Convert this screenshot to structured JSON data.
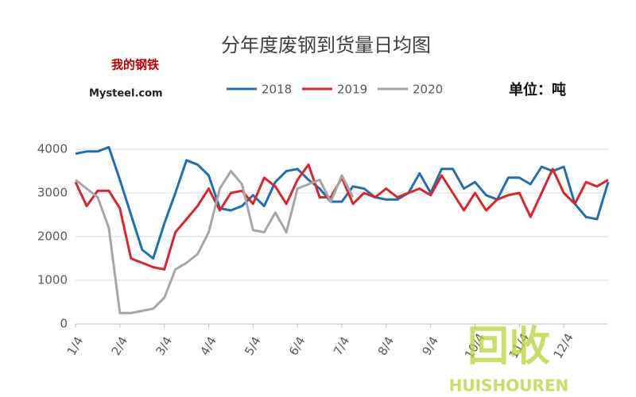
{
  "chart_data": {
    "type": "line",
    "title": "分年度废钢到货量日均图",
    "unit": "单位：吨",
    "logo": {
      "text": "我的钢铁",
      "site": "Mysteel.com"
    },
    "watermark": {
      "text": "回收",
      "site": "HUISHOUREN"
    },
    "categories": [
      "1/4",
      null,
      null,
      null,
      "2/4",
      null,
      null,
      null,
      "3/4",
      null,
      null,
      null,
      "4/4",
      null,
      null,
      null,
      "5/4",
      null,
      null,
      null,
      "6/4",
      null,
      null,
      null,
      "7/4",
      null,
      null,
      null,
      "8/4",
      null,
      null,
      null,
      "9/4",
      null,
      null,
      null,
      "10/4",
      null,
      null,
      null,
      "11/4",
      null,
      null,
      null,
      "12/4",
      null,
      null,
      null,
      null
    ],
    "series": [
      {
        "name": "2018",
        "color": "#1f6fb2",
        "values": [
          3900,
          3950,
          3950,
          4050,
          3300,
          2500,
          1700,
          1500,
          2300,
          3000,
          3750,
          3650,
          3400,
          2650,
          2600,
          2700,
          2950,
          2700,
          3250,
          3500,
          3550,
          3300,
          3100,
          2800,
          2800,
          3150,
          3100,
          2900,
          2850,
          2850,
          3000,
          3450,
          3000,
          3550,
          3550,
          3100,
          3250,
          2950,
          2850,
          3350,
          3350,
          3200,
          3600,
          3500,
          3600,
          2750,
          2450,
          2400,
          3250
        ]
      },
      {
        "name": "2019",
        "color": "#d9262b",
        "values": [
          3250,
          2700,
          3050,
          3050,
          2650,
          1500,
          1400,
          1300,
          1250,
          2100,
          2400,
          2700,
          3100,
          2600,
          3000,
          3050,
          2750,
          3350,
          3150,
          2750,
          3300,
          3650,
          2900,
          2900,
          3350,
          2750,
          3000,
          2900,
          3100,
          2900,
          3000,
          3100,
          2950,
          3400,
          3000,
          2600,
          3000,
          2600,
          2850,
          2950,
          3000,
          2450,
          3000,
          3550,
          3000,
          2750,
          3250,
          3150,
          3300
        ]
      },
      {
        "name": "2020",
        "color": "#a6a6a6",
        "values": [
          3300,
          3100,
          2900,
          2200,
          250,
          250,
          300,
          350,
          600,
          1250,
          1400,
          1600,
          2100,
          3100,
          3500,
          3200,
          2150,
          2100,
          2550,
          2100,
          3100,
          3200,
          3300,
          2800,
          3400,
          2900,
          null,
          null,
          null,
          null,
          null,
          null,
          null,
          null,
          null,
          null,
          null,
          null,
          null,
          null,
          null,
          null,
          null,
          null,
          null,
          null,
          null,
          null,
          null
        ]
      }
    ],
    "ylim": [
      0,
      4400
    ],
    "yticks": [
      0,
      1000,
      2000,
      3000,
      4000
    ],
    "grid": true
  }
}
